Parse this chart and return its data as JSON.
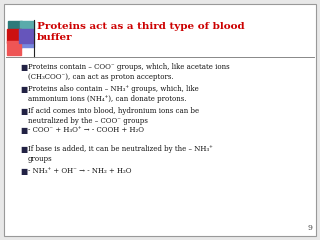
{
  "title_line1": "Proteins act as a third type of blood",
  "title_line2": "buffer",
  "title_color": "#cc0000",
  "background_color": "#e8e8e8",
  "slide_bg": "#ffffff",
  "border_color": "#999999",
  "text_color": "#111111",
  "bullet_char": "■",
  "bullets": [
    "Proteins contain – COO⁻ groups, which, like acetate ions\n(CH₃COO⁻), can act as proton acceptors.",
    "Proteins also contain – NH₃⁺ groups, which, like\nammonium ions (NH₄⁺), can donate protons.",
    "If acid comes into blood, hydronium ions can be\nneutralized by the – COO⁻ groups",
    "- COO⁻ + H₃O⁺ → - COOH + H₂O",
    "If base is added, it can be neutralized by the – NH₃⁺\ngroups",
    "- NH₃⁺ + OH⁻ → - NH₂ + H₂O"
  ],
  "page_number": "9",
  "logo": {
    "teal_dark": "#2d7a7a",
    "teal_light": "#5aabab",
    "blue_dark": "#2233aa",
    "blue_mid": "#5566cc",
    "blue_light": "#7788dd",
    "red_dark": "#cc1111",
    "red_light": "#ee5555",
    "purple": "#6655bb"
  }
}
